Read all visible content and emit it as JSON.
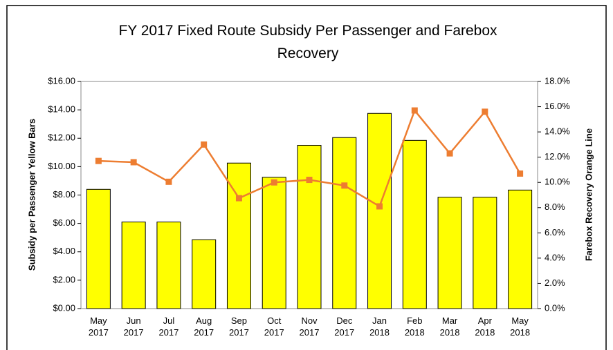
{
  "chart_data": {
    "type": "bar_line",
    "title": "FY 2017 Fixed Route Subsidy Per Passenger and Farebox Recovery",
    "ylabel": "Subsidy per Passenger Yellow Bars",
    "y2label": "Farebox Recovery Orange Line",
    "categories": [
      "May 2017",
      "Jun 2017",
      "Jul 2017",
      "Aug 2017",
      "Sep 2017",
      "Oct 2017",
      "Nov 2017",
      "Dec 2017",
      "Jan 2018",
      "Feb 2018",
      "Mar 2018",
      "Apr 2018",
      "May 2018"
    ],
    "series": [
      {
        "type": "bar",
        "color": "#ffff00",
        "values": [
          8.4,
          6.1,
          6.1,
          4.85,
          10.25,
          9.25,
          11.5,
          12.05,
          13.75,
          11.85,
          7.85,
          7.85,
          8.35
        ]
      },
      {
        "type": "line",
        "axis": "y2",
        "color": "#ed7d31",
        "values": [
          11.7,
          11.6,
          10.05,
          13.0,
          8.75,
          10.0,
          10.2,
          9.75,
          8.1,
          15.7,
          12.3,
          15.6,
          10.7
        ]
      }
    ],
    "ylim": [
      0,
      16
    ],
    "yticks": [
      {
        "value": 0,
        "label": "$0.00"
      },
      {
        "value": 2,
        "label": "$2.00"
      },
      {
        "value": 4,
        "label": "$4.00"
      },
      {
        "value": 6,
        "label": "$6.00"
      },
      {
        "value": 8,
        "label": "$8.00"
      },
      {
        "value": 10,
        "label": "$10.00"
      },
      {
        "value": 12,
        "label": "$12.00"
      },
      {
        "value": 14,
        "label": "$14.00"
      },
      {
        "value": 16,
        "label": "$16.00"
      }
    ],
    "y2lim": [
      0,
      18
    ],
    "y2ticks": [
      {
        "value": 0,
        "label": "0.0%"
      },
      {
        "value": 2,
        "label": "2.0%"
      },
      {
        "value": 4,
        "label": "4.0%"
      },
      {
        "value": 6,
        "label": "6.0%"
      },
      {
        "value": 8,
        "label": "8.0%"
      },
      {
        "value": 10,
        "label": "10.0%"
      },
      {
        "value": 12,
        "label": "12.0%"
      },
      {
        "value": 14,
        "label": "14.0%"
      },
      {
        "value": 16,
        "label": "16.0%"
      },
      {
        "value": 18,
        "label": "18.0%"
      }
    ]
  }
}
